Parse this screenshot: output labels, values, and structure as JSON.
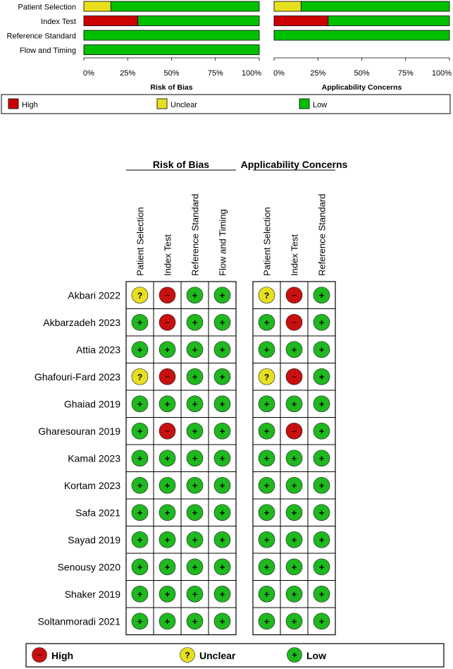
{
  "chart_data": [
    {
      "type": "bar",
      "orientation": "horizontal",
      "stacked": true,
      "title": "Risk of Bias",
      "categories": [
        "Patient Selection",
        "Index Test",
        "Reference Standard",
        "Flow and Timing"
      ],
      "series": [
        {
          "name": "High",
          "values": [
            0,
            30.8,
            0,
            0
          ]
        },
        {
          "name": "Unclear",
          "values": [
            15.4,
            0,
            0,
            0
          ]
        },
        {
          "name": "Low",
          "values": [
            84.6,
            69.2,
            100,
            100
          ]
        }
      ],
      "x_ticks": [
        "0%",
        "25%",
        "50%",
        "75%",
        "100%"
      ],
      "xlim": [
        0,
        100
      ]
    },
    {
      "type": "bar",
      "orientation": "horizontal",
      "stacked": true,
      "title": "Applicability Concerns",
      "categories": [
        "Patient Selection",
        "Index Test",
        "Reference Standard"
      ],
      "series": [
        {
          "name": "High",
          "values": [
            0,
            30.8,
            0
          ]
        },
        {
          "name": "Unclear",
          "values": [
            15.4,
            0,
            0
          ]
        },
        {
          "name": "Low",
          "values": [
            84.6,
            69.2,
            100
          ]
        }
      ],
      "x_ticks": [
        "0%",
        "25%",
        "50%",
        "75%",
        "100%"
      ],
      "xlim": [
        0,
        100
      ]
    },
    {
      "type": "table",
      "group_titles": [
        "Risk of Bias",
        "Applicability Concerns"
      ],
      "rob_columns": [
        "Patient Selection",
        "Index Test",
        "Reference Standard",
        "Flow and Timing"
      ],
      "app_columns": [
        "Patient Selection",
        "Index Test",
        "Reference Standard"
      ],
      "symbols": {
        "low": "+",
        "unclear": "?",
        "high": "−"
      },
      "studies": [
        {
          "name": "Akbari 2022",
          "rob": [
            "unclear",
            "high",
            "low",
            "low"
          ],
          "app": [
            "unclear",
            "high",
            "low"
          ]
        },
        {
          "name": "Akbarzadeh 2023",
          "rob": [
            "low",
            "high",
            "low",
            "low"
          ],
          "app": [
            "low",
            "high",
            "low"
          ]
        },
        {
          "name": "Attia 2023",
          "rob": [
            "low",
            "low",
            "low",
            "low"
          ],
          "app": [
            "low",
            "low",
            "low"
          ]
        },
        {
          "name": "Ghafouri-Fard 2023",
          "rob": [
            "unclear",
            "high",
            "low",
            "low"
          ],
          "app": [
            "unclear",
            "high",
            "low"
          ]
        },
        {
          "name": "Ghaiad 2019",
          "rob": [
            "low",
            "low",
            "low",
            "low"
          ],
          "app": [
            "low",
            "low",
            "low"
          ]
        },
        {
          "name": "Gharesouran 2019",
          "rob": [
            "low",
            "high",
            "low",
            "low"
          ],
          "app": [
            "low",
            "high",
            "low"
          ]
        },
        {
          "name": "Kamal 2023",
          "rob": [
            "low",
            "low",
            "low",
            "low"
          ],
          "app": [
            "low",
            "low",
            "low"
          ]
        },
        {
          "name": "Kortam 2023",
          "rob": [
            "low",
            "low",
            "low",
            "low"
          ],
          "app": [
            "low",
            "low",
            "low"
          ]
        },
        {
          "name": "Safa 2021",
          "rob": [
            "low",
            "low",
            "low",
            "low"
          ],
          "app": [
            "low",
            "low",
            "low"
          ]
        },
        {
          "name": "Sayad 2019",
          "rob": [
            "low",
            "low",
            "low",
            "low"
          ],
          "app": [
            "low",
            "low",
            "low"
          ]
        },
        {
          "name": "Senousy 2020",
          "rob": [
            "low",
            "low",
            "low",
            "low"
          ],
          "app": [
            "low",
            "low",
            "low"
          ]
        },
        {
          "name": "Shaker 2019",
          "rob": [
            "low",
            "low",
            "low",
            "low"
          ],
          "app": [
            "low",
            "low",
            "low"
          ]
        },
        {
          "name": "Soltanmoradi 2021",
          "rob": [
            "low",
            "low",
            "low",
            "low"
          ],
          "app": [
            "low",
            "low",
            "low"
          ]
        }
      ]
    }
  ],
  "legend": {
    "items": [
      {
        "key": "high",
        "label": "High"
      },
      {
        "key": "unclear",
        "label": "Unclear"
      },
      {
        "key": "low",
        "label": "Low"
      }
    ]
  },
  "colors": {
    "high": "#cc0000",
    "unclear": "#e8e01c",
    "low": "#00c000",
    "circle_high": "#c81010",
    "circle_unclear": "#e6e020",
    "circle_low": "#1fb81f"
  }
}
